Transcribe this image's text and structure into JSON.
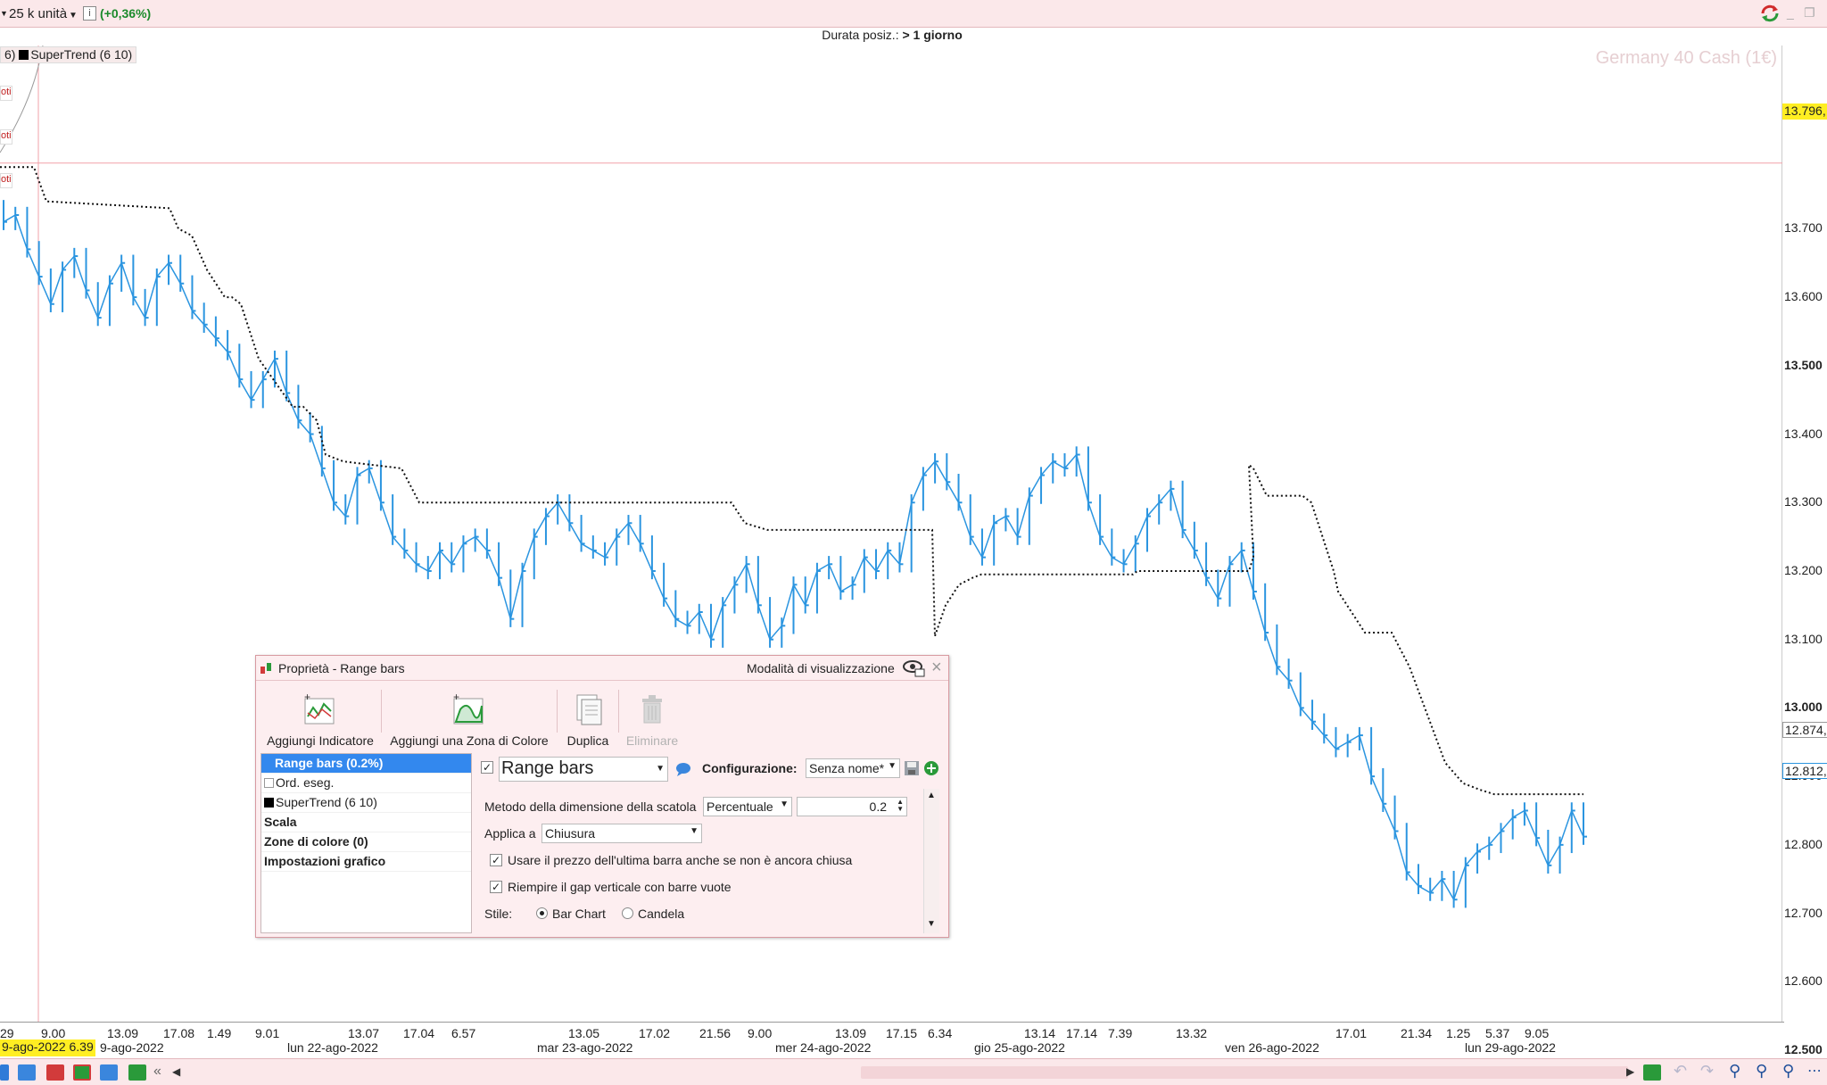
{
  "topbar": {
    "units_label": "25 k unità",
    "change": "(+0,36%)",
    "info_glyph": "i",
    "colors": {
      "positive": "#1a8a2a",
      "background": "#fbe8ea"
    }
  },
  "subheader": {
    "label": "Durata posiz.: ",
    "value": "> 1 giorno"
  },
  "chart": {
    "watermark": "Germany 40 Cash (1€)",
    "indicator_tag_left": "6)",
    "indicator_tag": "SuperTrend (6 10)",
    "side_labels": [
      "oti",
      "oti",
      "oti"
    ],
    "price_badge_top": "13.796,",
    "price_badge_supertrend": "12.874,",
    "price_badge_last": "12.812,",
    "cursor_date": "9-ago-2022 6.39",
    "colors": {
      "series": "#2b95e0",
      "supertrend": "#111111",
      "price_line": "#f2a0a8",
      "badge_yellow": "#ffee22"
    }
  },
  "chart_data": {
    "type": "line",
    "title": "Germany 40 Cash (1€)",
    "xlabel": "",
    "ylabel": "",
    "ylim": [
      12450,
      13850
    ],
    "yticks": [
      "13.700",
      "13.600",
      "13.500",
      "13.400",
      "13.300",
      "13.200",
      "13.100",
      "13.000",
      "12.900",
      "12.800",
      "12.700",
      "12.600",
      "12.500"
    ],
    "ytick_bold": [
      "13.500",
      "13.000",
      "12.500"
    ],
    "xtick_times": [
      "29",
      "9.00",
      "13.09",
      "17.08",
      "1.49",
      "9.01",
      "13.07",
      "17.04",
      "6.57",
      "13.05",
      "17.02",
      "21.56",
      "9.00",
      "13.09",
      "17.15",
      "6.34",
      "13.14",
      "17.14",
      "7.39",
      "13.32",
      "17.01",
      "21.34",
      "1.25",
      "5.37",
      "9.05"
    ],
    "xtick_dates": [
      "9-ago-2022",
      "lun 22-ago-2022",
      "mar 23-ago-2022",
      "mer 24-ago-2022",
      "gio 25-ago-2022",
      "ven 26-ago-2022",
      "lun 29-ago-2022"
    ],
    "series": [
      {
        "name": "Range bars (0.2%)",
        "values": [
          13710,
          13720,
          13670,
          13630,
          13590,
          13640,
          13660,
          13610,
          13570,
          13620,
          13650,
          13600,
          13570,
          13630,
          13650,
          13620,
          13580,
          13560,
          13540,
          13520,
          13480,
          13450,
          13480,
          13510,
          13460,
          13420,
          13400,
          13350,
          13300,
          13280,
          13340,
          13350,
          13300,
          13250,
          13230,
          13210,
          13200,
          13230,
          13210,
          13240,
          13250,
          13230,
          13190,
          13130,
          13200,
          13250,
          13280,
          13300,
          13270,
          13240,
          13230,
          13220,
          13250,
          13270,
          13240,
          13200,
          13160,
          13130,
          13120,
          13140,
          13100,
          13150,
          13180,
          13210,
          13150,
          13100,
          13120,
          13180,
          13150,
          13200,
          13210,
          13170,
          13180,
          13220,
          13200,
          13230,
          13210,
          13300,
          13340,
          13360,
          13330,
          13300,
          13250,
          13220,
          13270,
          13280,
          13250,
          13310,
          13340,
          13360,
          13350,
          13370,
          13300,
          13250,
          13220,
          13210,
          13240,
          13280,
          13300,
          13320,
          13260,
          13230,
          13190,
          13160,
          13210,
          13230,
          13170,
          13110,
          13060,
          13040,
          13000,
          12980,
          12960,
          12940,
          12950,
          12960,
          12900,
          12860,
          12820,
          12760,
          12740,
          12730,
          12750,
          12720,
          12770,
          12790,
          12800,
          12820,
          12840,
          12850,
          12810,
          12770,
          12800,
          12850,
          12812
        ],
        "x_range": [
          0,
          1775
        ]
      },
      {
        "name": "SuperTrend (6 10)",
        "segments": [
          {
            "x": [
              0,
              38,
              52,
              190,
              200,
              215,
              232,
              252,
              260,
              270,
              290,
              328,
              340,
              355,
              365,
              385,
              450,
              470,
              495,
              500,
              545,
              820,
              835,
              860,
              885,
              900,
              1045,
              1048
            ],
            "y": [
              13790,
              13790,
              13740,
              13730,
              13700,
              13690,
              13640,
              13600,
              13600,
              13590,
              13510,
              13440,
              13440,
              13420,
              13370,
              13360,
              13350,
              13300,
              13300,
              13300,
              13300,
              13300,
              13270,
              13260,
              13260,
              13260,
              13260,
              13105
            ]
          },
          {
            "x": [
              1048,
              1060,
              1075,
              1090,
              1100,
              1115,
              1270,
              1275,
              1400,
              1405
            ],
            "y": [
              13105,
              13150,
              13180,
              13190,
              13195,
              13195,
              13195,
              13200,
              13200,
              13220
            ]
          },
          {
            "x": [
              1405,
              1400,
              1405,
              1420,
              1460,
              1470,
              1495,
              1500,
              1530,
              1560,
              1580,
              1600,
              1620,
              1640,
              1660,
              1675,
              1775
            ],
            "y": [
              13220,
              13355,
              13350,
              13310,
              13310,
              13300,
              13200,
              13170,
              13110,
              13110,
              13060,
              12990,
              12920,
              12890,
              12880,
              12874,
              12874
            ]
          }
        ]
      }
    ]
  },
  "bottombar": {
    "icons": [
      "share-icon",
      "chat-icon",
      "document-icon",
      "ladder-icon",
      "chart-window-icon",
      "tools-icon",
      "collapse-left-icon",
      "scroll-left-icon",
      "scroll-right-icon",
      "green-arrow-icon",
      "undo-icon",
      "redo-icon",
      "zoom-fit-icon",
      "zoom-out-icon",
      "zoom-in-icon",
      "more-icon"
    ]
  },
  "dialog": {
    "title": "Proprietà - Range bars",
    "display_mode": "Modalità di visualizzazione",
    "toolbar": {
      "add_indicator": "Aggiungi Indicatore",
      "add_color_zone": "Aggiungi una Zona di Colore",
      "duplicate": "Duplica",
      "delete": "Eliminare"
    },
    "list": {
      "items": [
        {
          "label": "Range bars (0.2%)"
        },
        {
          "label": "Ord. eseg."
        },
        {
          "label": "SuperTrend (6 10)"
        },
        {
          "label": "Scala"
        },
        {
          "label": "Zone di colore (0)"
        },
        {
          "label": "Impostazioni grafico"
        }
      ]
    },
    "panel": {
      "chart_type": "Range bars",
      "configuration_label": "Configurazione:",
      "configuration_value": "Senza nome*",
      "box_method_label": "Metodo della dimensione della scatola",
      "box_method_value": "Percentuale",
      "box_size_value": "0.2",
      "apply_to_label": "Applica a",
      "apply_to_value": "Chiusura",
      "use_last_bar_label": "Usare il prezzo dell'ultima barra anche se non è ancora chiusa",
      "fill_gap_label": "Riempire il gap verticale con barre vuote",
      "style_label": "Stile:",
      "style_bar": "Bar Chart",
      "style_candle": "Candela"
    }
  }
}
